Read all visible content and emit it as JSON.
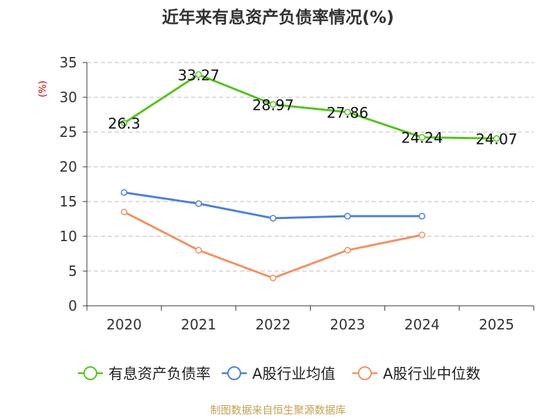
{
  "chart_data": {
    "type": "line",
    "title": "近年来有息资产负债率情况(%)",
    "ylabel": "(%)",
    "xlabel": "",
    "ylim": [
      0,
      35
    ],
    "yticks": [
      "0",
      "5",
      "10",
      "15",
      "20",
      "25",
      "30",
      "35"
    ],
    "categories": [
      "2020",
      "2021",
      "2022",
      "2023",
      "2024",
      "2025"
    ],
    "series": [
      {
        "name": "有息资产负债率",
        "color": "#52c41a",
        "values": [
          26.3,
          33.27,
          28.97,
          27.86,
          24.24,
          24.07
        ],
        "labels": [
          "26.3",
          "33.27",
          "28.97",
          "27.86",
          "24.24",
          "24.07"
        ],
        "show_labels": true
      },
      {
        "name": "A股行业均值",
        "color": "#4a7fdc",
        "values": [
          16.3,
          14.7,
          12.6,
          12.9,
          12.9,
          null
        ],
        "show_labels": false
      },
      {
        "name": "A股行业中位数",
        "color": "#f49060",
        "values": [
          13.5,
          8.0,
          4.0,
          8.0,
          10.2,
          null
        ],
        "show_labels": false
      }
    ],
    "grid": true,
    "legend_position": "bottom",
    "source_text": "制图数据来自恒生聚源数据库"
  },
  "colors": {
    "title": "#333333",
    "axis": "#333333",
    "grid": "#bbbbbb",
    "ylabel": "#cc0000",
    "source": "#c8a050"
  }
}
